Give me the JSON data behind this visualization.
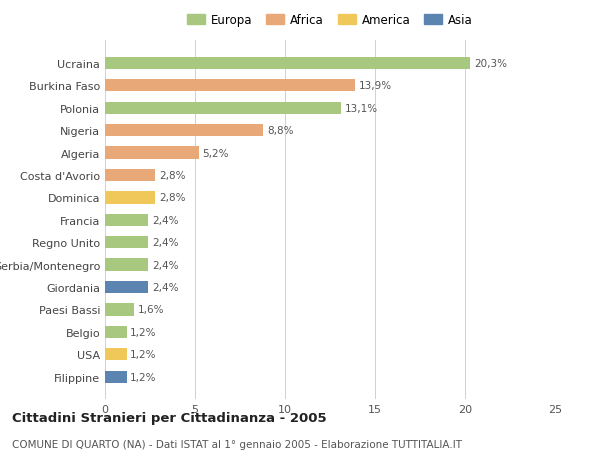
{
  "categories": [
    "Ucraina",
    "Burkina Faso",
    "Polonia",
    "Nigeria",
    "Algeria",
    "Costa d'Avorio",
    "Dominica",
    "Francia",
    "Regno Unito",
    "Serbia/Montenegro",
    "Giordania",
    "Paesi Bassi",
    "Belgio",
    "USA",
    "Filippine"
  ],
  "values": [
    20.3,
    13.9,
    13.1,
    8.8,
    5.2,
    2.8,
    2.8,
    2.4,
    2.4,
    2.4,
    2.4,
    1.6,
    1.2,
    1.2,
    1.2
  ],
  "labels": [
    "20,3%",
    "13,9%",
    "13,1%",
    "8,8%",
    "5,2%",
    "2,8%",
    "2,8%",
    "2,4%",
    "2,4%",
    "2,4%",
    "2,4%",
    "1,6%",
    "1,2%",
    "1,2%",
    "1,2%"
  ],
  "continents": [
    "Europa",
    "Africa",
    "Europa",
    "Africa",
    "Africa",
    "Africa",
    "America",
    "Europa",
    "Europa",
    "Europa",
    "Asia",
    "Europa",
    "Europa",
    "America",
    "Asia"
  ],
  "colors": {
    "Europa": "#a8c880",
    "Africa": "#e8a878",
    "America": "#f0c85a",
    "Asia": "#5b85b0"
  },
  "legend_order": [
    "Europa",
    "Africa",
    "America",
    "Asia"
  ],
  "title": "Cittadini Stranieri per Cittadinanza - 2005",
  "subtitle": "COMUNE DI QUARTO (NA) - Dati ISTAT al 1° gennaio 2005 - Elaborazione TUTTITALIA.IT",
  "xlim": [
    0,
    25
  ],
  "xticks": [
    0,
    5,
    10,
    15,
    20,
    25
  ],
  "bg_color": "#ffffff",
  "bar_height": 0.55,
  "title_fontsize": 9.5,
  "subtitle_fontsize": 7.5,
  "label_fontsize": 7.5,
  "tick_fontsize": 8,
  "legend_fontsize": 8.5
}
